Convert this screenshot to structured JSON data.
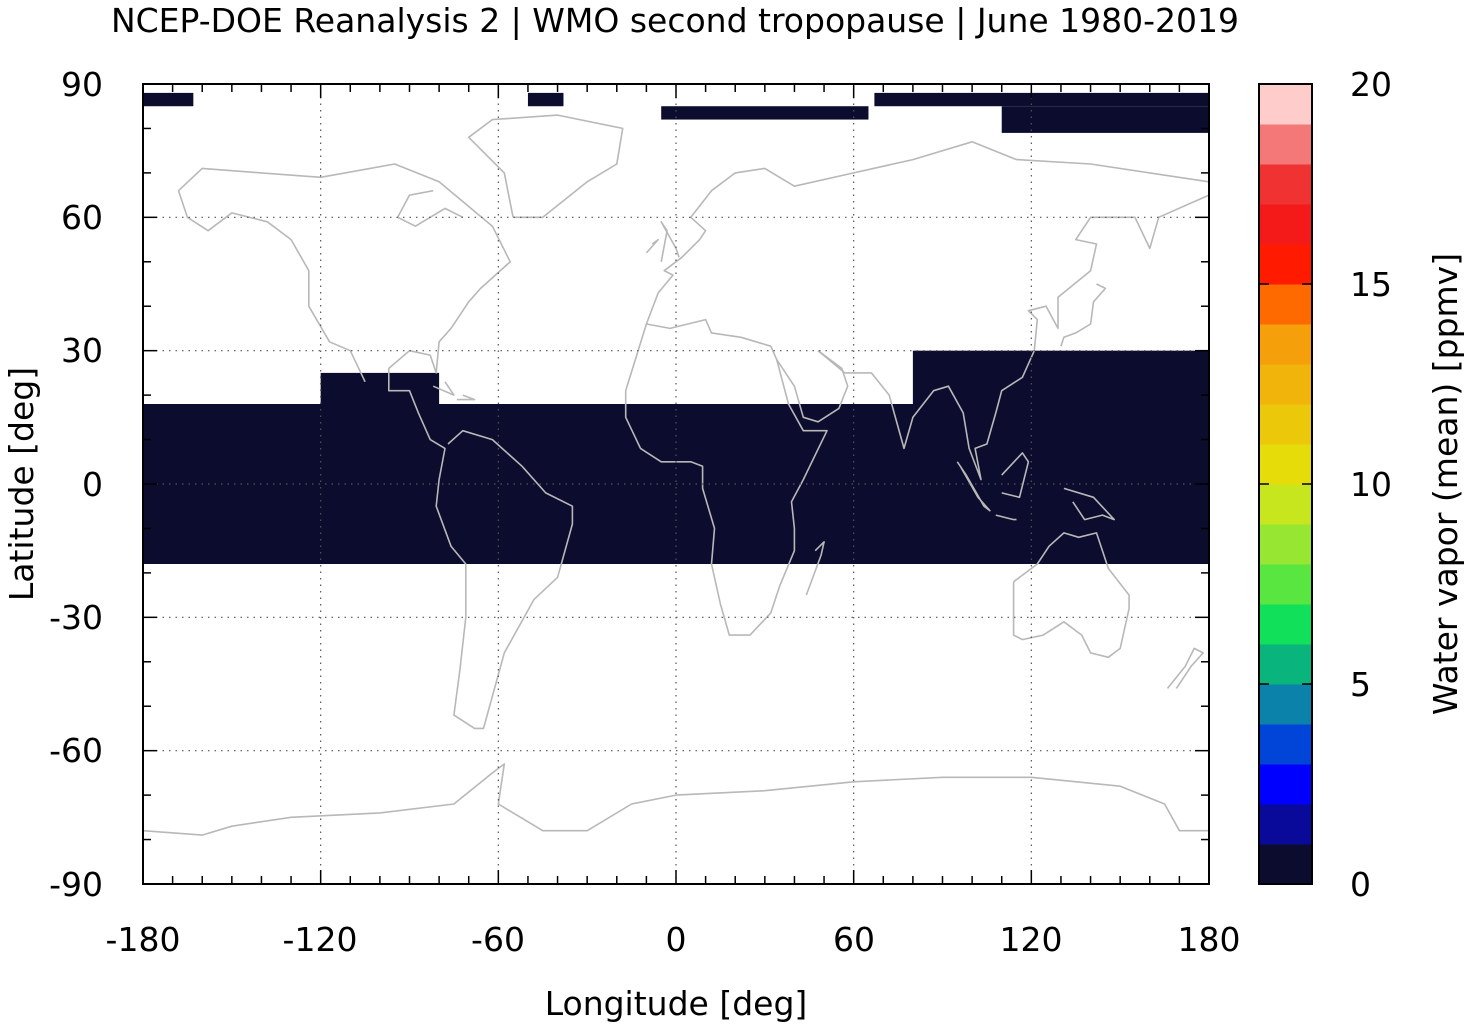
{
  "title": "NCEP-DOE Reanalysis 2 | WMO second tropopause | June 1980-2019",
  "colors": {
    "data_fill": "#0c0c2e",
    "coastline": "#b8b8b8",
    "grid": "#555555",
    "frame": "#000000"
  },
  "chart_data": {
    "type": "heatmap",
    "map_projection": "equirectangular",
    "xlabel": "Longitude [deg]",
    "ylabel": "Latitude [deg]",
    "xlim": [
      -180,
      180
    ],
    "ylim": [
      -90,
      90
    ],
    "x_ticks": [
      "-180",
      "-120",
      "-60",
      "0",
      "60",
      "120",
      "180"
    ],
    "y_ticks": [
      "90",
      "60",
      "30",
      "0",
      "-30",
      "-60",
      "-90"
    ],
    "grid": "dotted",
    "colorbar": {
      "label": "Water vapor (mean) [ppmv]",
      "range": [
        0,
        20
      ],
      "ticks": [
        "20",
        "15",
        "10",
        "5",
        "0"
      ],
      "colors": [
        "#0c0c2e",
        "#0a0a9a",
        "#0000ff",
        "#0044d8",
        "#0a82aa",
        "#0ab47d",
        "#10e05a",
        "#5ae640",
        "#96e632",
        "#c8e61e",
        "#e6dc0a",
        "#ecc80a",
        "#f0b40a",
        "#f5a00a",
        "#ff6a00",
        "#ff1a00",
        "#f51a1a",
        "#f03232",
        "#f57878",
        "#ffcccc"
      ]
    },
    "observed_cells": [
      {
        "lon": [
          -180,
          -163
        ],
        "lat": [
          85,
          88
        ]
      },
      {
        "lon": [
          -50,
          -38
        ],
        "lat": [
          85,
          88
        ]
      },
      {
        "lon": [
          -5,
          65
        ],
        "lat": [
          82,
          85
        ]
      },
      {
        "lon": [
          67,
          180
        ],
        "lat": [
          85,
          88
        ]
      },
      {
        "lon": [
          110,
          180
        ],
        "lat": [
          79,
          85
        ]
      },
      {
        "lon": [
          -180,
          180
        ],
        "lat": [
          -18,
          18
        ]
      },
      {
        "lon": [
          -120,
          -80
        ],
        "lat": [
          18,
          25
        ]
      },
      {
        "lon": [
          80,
          180
        ],
        "lat": [
          18,
          30
        ]
      }
    ]
  }
}
